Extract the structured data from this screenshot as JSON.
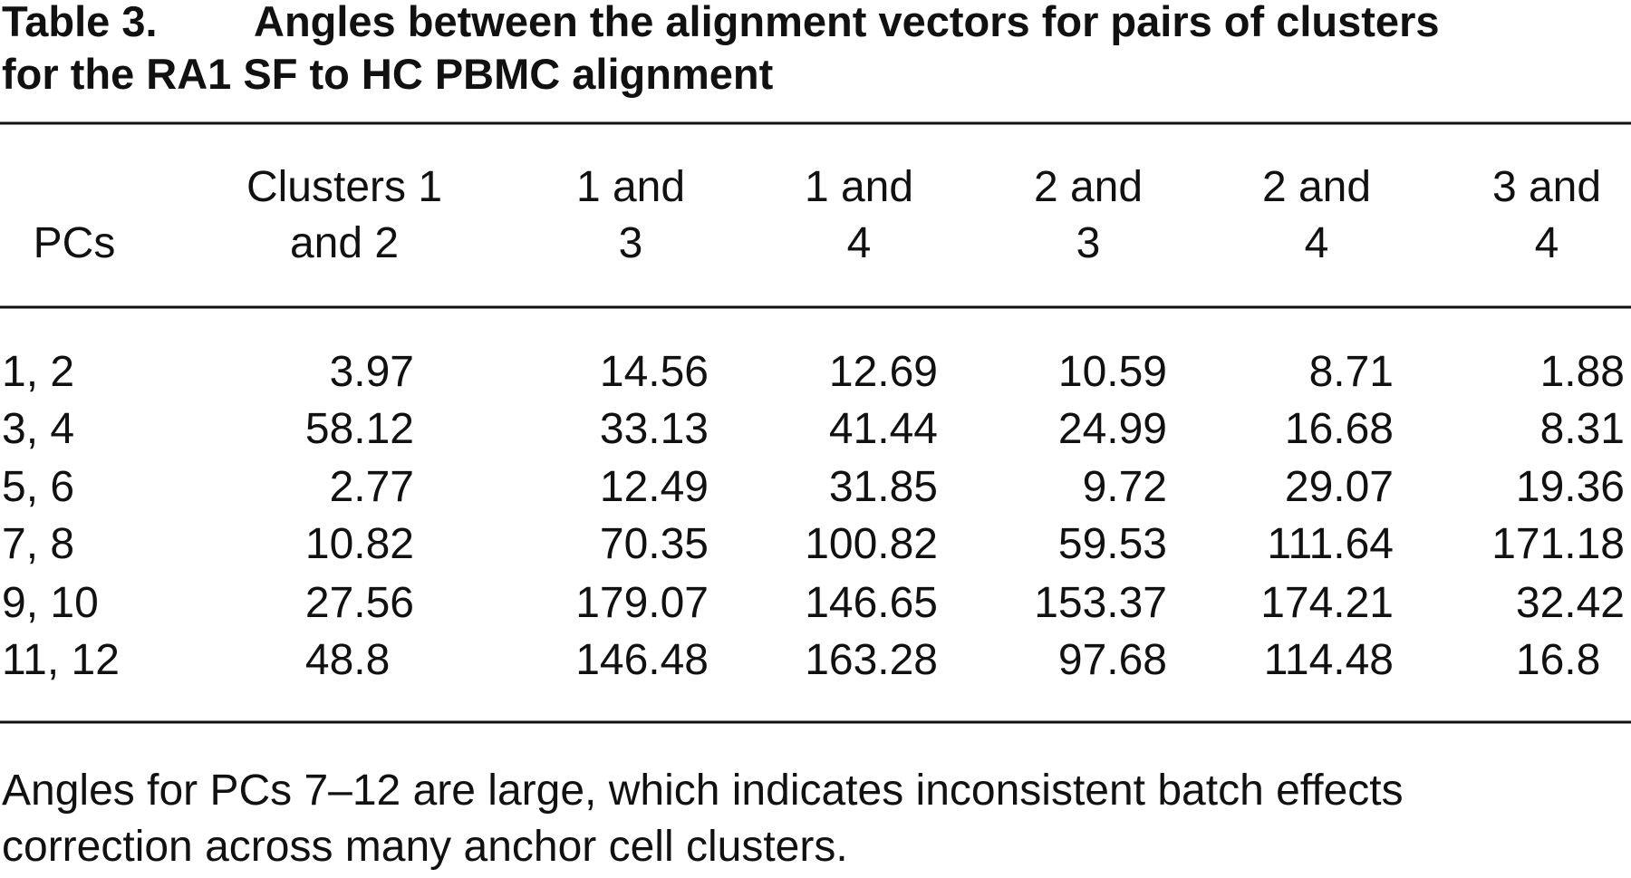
{
  "table_label": "Table 3.",
  "title_lines": [
    "Angles between the alignment vectors for pairs of clusters",
    "for the RA1 SF to HC PBMC alignment"
  ],
  "table": {
    "headers": [
      [
        "PCs"
      ],
      [
        "Clusters 1",
        "and 2"
      ],
      [
        "1 and",
        "3"
      ],
      [
        "1 and",
        "4"
      ],
      [
        "2 and",
        "3"
      ],
      [
        "2 and",
        "4"
      ],
      [
        "3 and",
        "4"
      ]
    ],
    "rows": [
      [
        "1, 2",
        "3.97",
        "14.56",
        "12.69",
        "10.59",
        "8.71",
        "1.88"
      ],
      [
        "3, 4",
        "58.12",
        "33.13",
        "41.44",
        "24.99",
        "16.68",
        "8.31"
      ],
      [
        "5, 6",
        "2.77",
        "12.49",
        "31.85",
        "9.72",
        "29.07",
        "19.36"
      ],
      [
        "7, 8",
        "10.82",
        "70.35",
        "100.82",
        "59.53",
        "111.64",
        "171.18"
      ],
      [
        "9, 10",
        "27.56",
        "179.07",
        "146.65",
        "153.37",
        "174.21",
        "32.42"
      ],
      [
        "11, 12",
        "48.8",
        "146.48",
        "163.28",
        "97.68",
        "114.48",
        "16.8"
      ]
    ]
  },
  "footnote_lines": [
    "Angles for PCs 7–12 are large, which indicates inconsistent batch effects",
    "correction across many anchor cell clusters."
  ]
}
